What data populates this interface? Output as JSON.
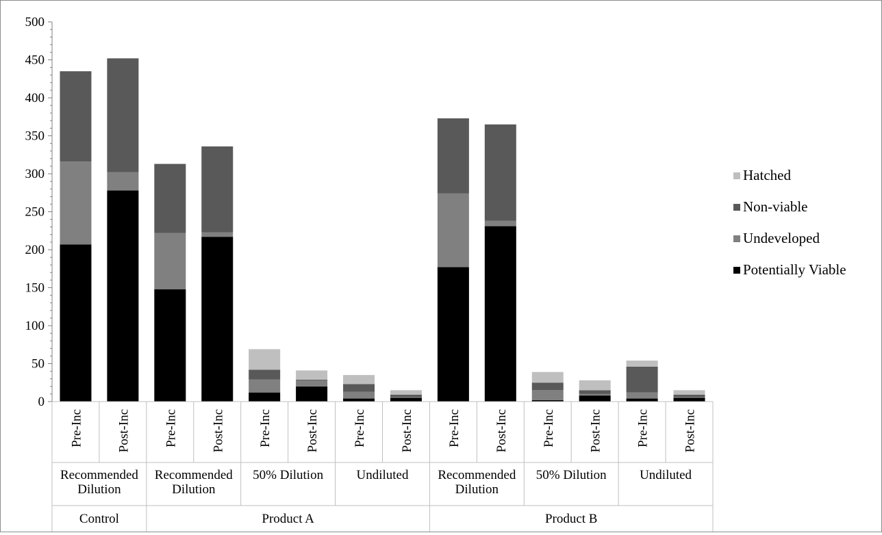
{
  "chart_data": {
    "type": "bar",
    "stacked": true,
    "grid": false,
    "legend_position": "right",
    "ylim": [
      0,
      500
    ],
    "y_ticks": [
      0,
      50,
      100,
      150,
      200,
      250,
      300,
      350,
      400,
      450,
      500
    ],
    "categories": [
      "Pre-Inc",
      "Post-Inc",
      "Pre-Inc",
      "Post-Inc",
      "Pre-Inc",
      "Post-Inc",
      "Pre-Inc",
      "Post-Inc",
      "Pre-Inc",
      "Post-Inc",
      "Pre-Inc",
      "Post-Inc",
      "Pre-Inc",
      "Post-Inc"
    ],
    "group_level_1": [
      {
        "label_lines": [
          "Recommended",
          "Dilution"
        ],
        "span": 2
      },
      {
        "label_lines": [
          "Recommended",
          "Dilution"
        ],
        "span": 2
      },
      {
        "label_lines": [
          "50% Dilution"
        ],
        "span": 2
      },
      {
        "label_lines": [
          "Undiluted"
        ],
        "span": 2
      },
      {
        "label_lines": [
          "Recommended",
          "Dilution"
        ],
        "span": 2
      },
      {
        "label_lines": [
          "50% Dilution"
        ],
        "span": 2
      },
      {
        "label_lines": [
          "Undiluted"
        ],
        "span": 2
      }
    ],
    "group_level_2": [
      {
        "label": "Control",
        "span": 2
      },
      {
        "label": "Product A",
        "span": 6
      },
      {
        "label": "Product B",
        "span": 6
      }
    ],
    "series": [
      {
        "name": "Potentially Viable",
        "color": "#000000",
        "values": [
          207,
          278,
          148,
          217,
          12,
          20,
          4,
          5,
          177,
          231,
          2,
          8,
          4,
          5
        ]
      },
      {
        "name": "Undeveloped",
        "color": "#808080",
        "values": [
          109,
          24,
          74,
          6,
          17,
          8,
          9,
          1,
          97,
          7,
          13,
          2,
          8,
          1
        ]
      },
      {
        "name": "Non-viable",
        "color": "#595959",
        "values": [
          119,
          150,
          91,
          113,
          13,
          1,
          10,
          3,
          99,
          127,
          10,
          5,
          34,
          3
        ]
      },
      {
        "name": "Hatched",
        "color": "#bfbfbf",
        "values": [
          0,
          0,
          0,
          0,
          27,
          12,
          12,
          6,
          0,
          0,
          14,
          13,
          8,
          6
        ]
      }
    ],
    "legend_order": [
      "Hatched",
      "Non-viable",
      "Undeveloped",
      "Potentially Viable"
    ]
  }
}
